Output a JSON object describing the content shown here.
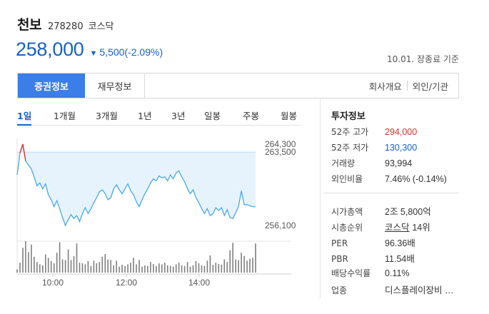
{
  "stock": {
    "name": "천보",
    "code": "278280",
    "market": "코스닥",
    "price": "258,000",
    "change": "5,500(-2.09%)",
    "base_date": "10.01. 장종료 기준"
  },
  "tabs": {
    "active": "증권정보",
    "financial": "재무정보",
    "company": "회사개요",
    "foreign": "외인/기관"
  },
  "periods": [
    "1일",
    "1개월",
    "3개월",
    "1년",
    "3년",
    "일봉",
    "주봉",
    "월봉"
  ],
  "chart_data": {
    "type": "line",
    "x_ticks": [
      "10:00",
      "12:00",
      "14:00"
    ],
    "y_ticks": [
      "264,300",
      "263,500",
      "256,100"
    ],
    "prev_close": 263500,
    "ylim": [
      256100,
      264300
    ],
    "price": [
      261200,
      263400,
      264300,
      262600,
      262200,
      261800,
      261000,
      260100,
      260400,
      259800,
      260300,
      259200,
      258700,
      258000,
      258600,
      257800,
      256900,
      256100,
      256700,
      257200,
      256800,
      257100,
      256500,
      257300,
      257900,
      257300,
      257800,
      258400,
      258900,
      259500,
      259700,
      259300,
      258700,
      258900,
      259800,
      260200,
      259700,
      259300,
      259800,
      260300,
      259600,
      259200,
      258500,
      258000,
      258700,
      259300,
      259800,
      260400,
      260800,
      260600,
      261100,
      260900,
      261000,
      260600,
      261200,
      260800,
      261400,
      261600,
      261000,
      260500,
      259800,
      259300,
      259700,
      258900,
      258400,
      257800,
      257300,
      257800,
      257100,
      257300,
      257900,
      257600,
      257900,
      257100,
      257700,
      256900,
      256800,
      257400,
      258000,
      259600,
      258200,
      258200,
      258100,
      258000,
      258000
    ],
    "volume": [
      10,
      30,
      75,
      95,
      62,
      85,
      48,
      32,
      25,
      22,
      55,
      45,
      35,
      28,
      60,
      92,
      40,
      38,
      70,
      38,
      50,
      88,
      30,
      28,
      25,
      35,
      20,
      36,
      28,
      32,
      48,
      56,
      40,
      38,
      22,
      36,
      18,
      24,
      20,
      25,
      30,
      45,
      25,
      38,
      18,
      22,
      20,
      32,
      26,
      20,
      28,
      25,
      30,
      22,
      20,
      18,
      25,
      30,
      22,
      20,
      32,
      18,
      22,
      35,
      28,
      22,
      20,
      36,
      52,
      24,
      30,
      26,
      24,
      40,
      32,
      68,
      90,
      40,
      38,
      60,
      50,
      36,
      42,
      45,
      88
    ]
  },
  "info": {
    "title": "투자정보",
    "rows": [
      {
        "label": "52주 고가",
        "value": "294,000"
      },
      {
        "label": "52주 저가",
        "value": "130,300"
      },
      {
        "label": "거래량",
        "value": "93,994"
      },
      {
        "label": "외인비율",
        "value": "7.46% (-0.14%)"
      },
      {
        "label": "시가총액",
        "value": "2조 5,800억"
      },
      {
        "label": "시총순위",
        "value": "코스닥",
        "suffix": "14위"
      },
      {
        "label": "PER",
        "value": "96.36배"
      },
      {
        "label": "PBR",
        "value": "11.54배"
      },
      {
        "label": "배당수익률",
        "value": "0.11%"
      },
      {
        "label": "업종",
        "value": "디스플레이장비 …"
      }
    ]
  },
  "colors": {
    "down": "#1761c8",
    "up": "#d93228",
    "accent": "#3b7de9",
    "chart_line": "#4aa8e6",
    "chart_fill": "#e6f3fc"
  }
}
